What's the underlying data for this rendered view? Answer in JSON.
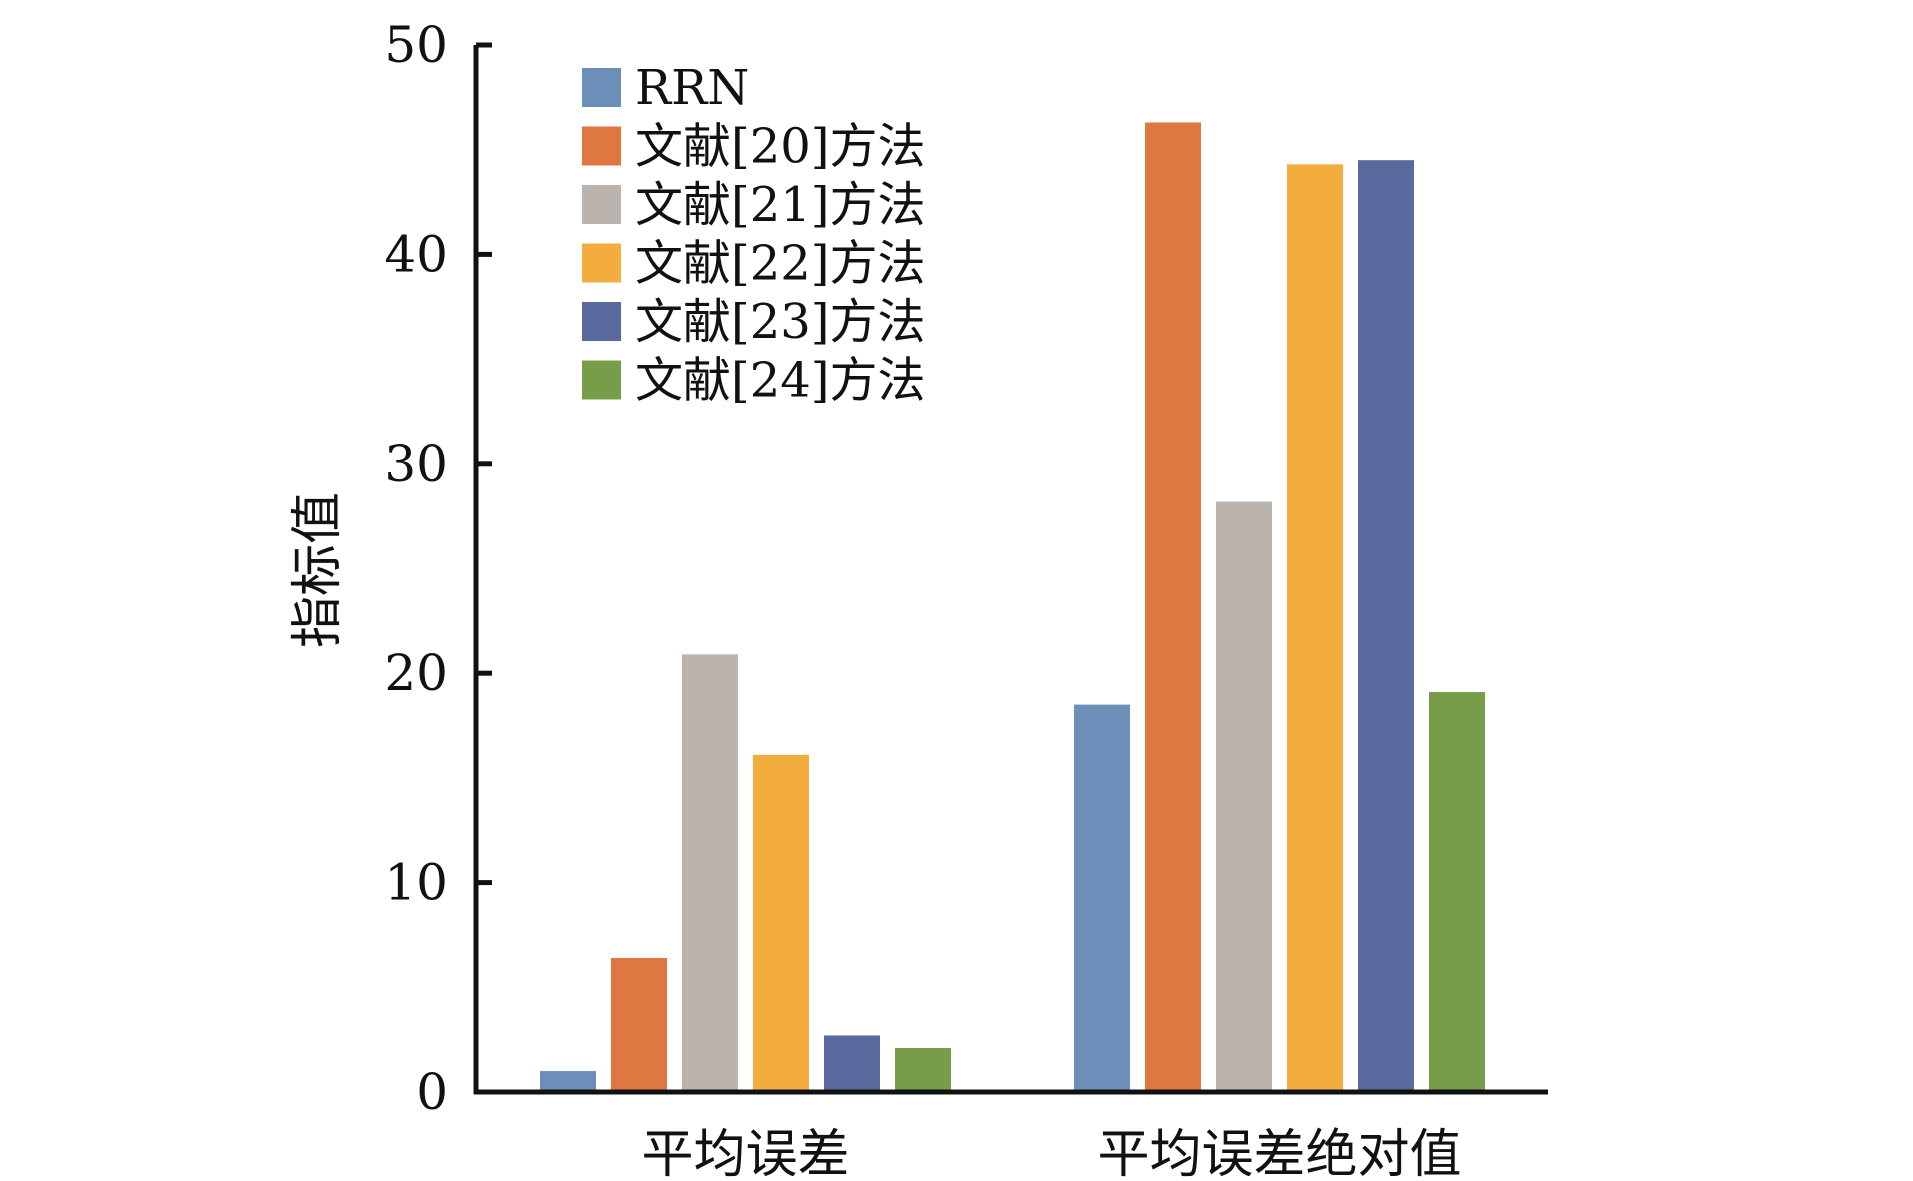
{
  "chart_data": {
    "type": "bar",
    "title": "",
    "xlabel": "",
    "ylabel": "指标值",
    "categories": [
      "平均误差",
      "平均误差绝对值"
    ],
    "series": [
      {
        "name": "RRN",
        "color": "#6b8fb8",
        "values": [
          1.0,
          18.5
        ]
      },
      {
        "name": "文献[20]方法",
        "color": "#de7740",
        "values": [
          6.4,
          46.3
        ]
      },
      {
        "name": "文献[21]方法",
        "color": "#bab3ae",
        "values": [
          20.9,
          28.2
        ]
      },
      {
        "name": "文献[22]方法",
        "color": "#f2ad3d",
        "values": [
          16.1,
          44.3
        ]
      },
      {
        "name": "文献[23]方法",
        "color": "#5a6a9f",
        "values": [
          2.7,
          44.5
        ]
      },
      {
        "name": "文献[24]方法",
        "color": "#779c4a",
        "values": [
          2.1,
          19.1
        ]
      }
    ],
    "ylim": [
      0,
      50
    ],
    "yticks": [
      0,
      10,
      20,
      30,
      40,
      50
    ],
    "grid": false,
    "legend_position": "top-left"
  }
}
